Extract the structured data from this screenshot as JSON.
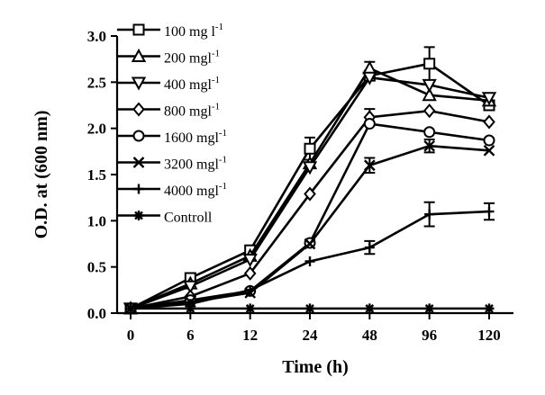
{
  "chart_data": {
    "type": "line",
    "title": "",
    "xlabel": "Time (h)",
    "ylabel": "O.D. at (600 nm)",
    "categories": [
      "0",
      "6",
      "12",
      "24",
      "48",
      "96",
      "120"
    ],
    "ylim": [
      0,
      3.0
    ],
    "yticks": [
      "0.0",
      "0.5",
      "1.0",
      "1.5",
      "2.0",
      "2.5",
      "3.0"
    ],
    "legend_position": "top-left",
    "series": [
      {
        "name": "100 mg l",
        "sup": "-1",
        "marker": "square",
        "values": [
          0.05,
          0.38,
          0.68,
          1.78,
          2.57,
          2.7,
          2.25
        ],
        "errors": [
          0,
          0,
          0,
          0.12,
          0,
          0.18,
          0
        ]
      },
      {
        "name": "200 mgl",
        "sup": "-1",
        "marker": "triangle-up",
        "values": [
          0.05,
          0.32,
          0.62,
          1.62,
          2.65,
          2.36,
          2.3
        ],
        "errors": [
          0,
          0,
          0,
          0,
          0.07,
          0,
          0
        ]
      },
      {
        "name": "400 mgl",
        "sup": "-1",
        "marker": "triangle-down",
        "values": [
          0.05,
          0.29,
          0.58,
          1.58,
          2.55,
          2.47,
          2.33
        ],
        "errors": [
          0,
          0,
          0,
          0,
          0,
          0,
          0
        ]
      },
      {
        "name": "800 mgl",
        "sup": "-1",
        "marker": "diamond",
        "values": [
          0.05,
          0.18,
          0.43,
          1.29,
          2.12,
          2.19,
          2.07
        ],
        "errors": [
          0,
          0,
          0,
          0,
          0.09,
          0,
          0
        ]
      },
      {
        "name": "1600 mgl",
        "sup": "-1",
        "marker": "circle",
        "values": [
          0.05,
          0.14,
          0.24,
          0.76,
          2.05,
          1.96,
          1.87
        ],
        "errors": [
          0,
          0,
          0,
          0,
          0,
          0,
          0
        ]
      },
      {
        "name": "3200 mgl",
        "sup": "-1",
        "marker": "x",
        "values": [
          0.05,
          0.12,
          0.22,
          0.75,
          1.6,
          1.81,
          1.76
        ],
        "errors": [
          0,
          0,
          0,
          0,
          0.08,
          0.07,
          0
        ]
      },
      {
        "name": "4000 mgl",
        "sup": "-1",
        "marker": "plus",
        "values": [
          0.05,
          0.1,
          0.25,
          0.56,
          0.71,
          1.07,
          1.1
        ],
        "errors": [
          0,
          0,
          0,
          0,
          0.07,
          0.13,
          0.09
        ]
      },
      {
        "name": "Controll",
        "sup": "",
        "marker": "star",
        "values": [
          0.05,
          0.05,
          0.05,
          0.05,
          0.05,
          0.05,
          0.05
        ],
        "errors": [
          0,
          0,
          0,
          0,
          0,
          0,
          0
        ]
      }
    ]
  }
}
